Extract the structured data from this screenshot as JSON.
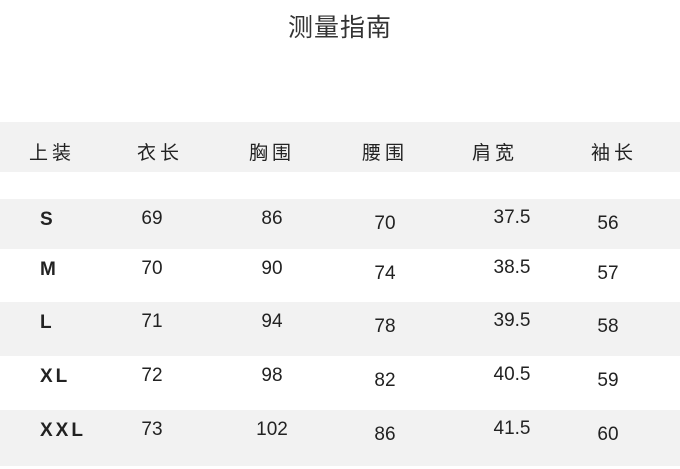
{
  "title": "测量指南",
  "table": {
    "headers": [
      "上装",
      "衣长",
      "胸围",
      "腰围",
      "肩宽",
      "袖长"
    ],
    "rows": [
      [
        "S",
        "69",
        "86",
        "70",
        "37.5",
        "56"
      ],
      [
        "M",
        "70",
        "90",
        "74",
        "38.5",
        "57"
      ],
      [
        "L",
        "71",
        "94",
        "78",
        "39.5",
        "58"
      ],
      [
        "XL",
        "72",
        "98",
        "82",
        "40.5",
        "59"
      ],
      [
        "XXL",
        "73",
        "102",
        "86",
        "41.5",
        "60"
      ]
    ],
    "row_band_color": "#f2f2f2"
  }
}
